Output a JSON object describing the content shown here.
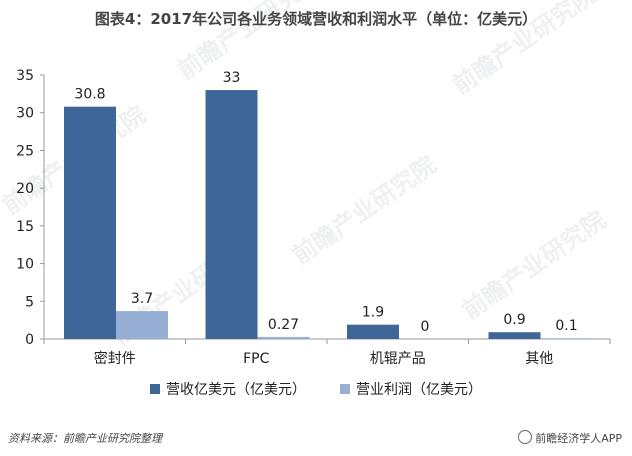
{
  "title": "图表4：2017年公司各业务领域营收和利润水平（单位：亿美元）",
  "source": "资料来源：前瞻产业研究院整理",
  "brand": "前瞻经济学人APP",
  "watermark": "前瞻产业研究院",
  "chart_data": {
    "type": "bar",
    "categories": [
      "密封件",
      "FPC",
      "机辊产品",
      "其他"
    ],
    "series": [
      {
        "name": "营收亿美元（亿美元）",
        "values": [
          30.8,
          33,
          1.9,
          0.9
        ],
        "labels": [
          "30.8",
          "33",
          "1.9",
          "0.9"
        ],
        "color": "#3f6699"
      },
      {
        "name": "营业利润（亿美元）",
        "values": [
          3.7,
          0.27,
          0,
          0.1
        ],
        "labels": [
          "3.7",
          "0.27",
          "0",
          "0.1"
        ],
        "color": "#97afd4"
      }
    ],
    "yticks": [
      "0",
      "5",
      "10",
      "15",
      "20",
      "25",
      "30",
      "35"
    ],
    "ylim": [
      0,
      35
    ],
    "grid": false,
    "legend": "bottom"
  }
}
